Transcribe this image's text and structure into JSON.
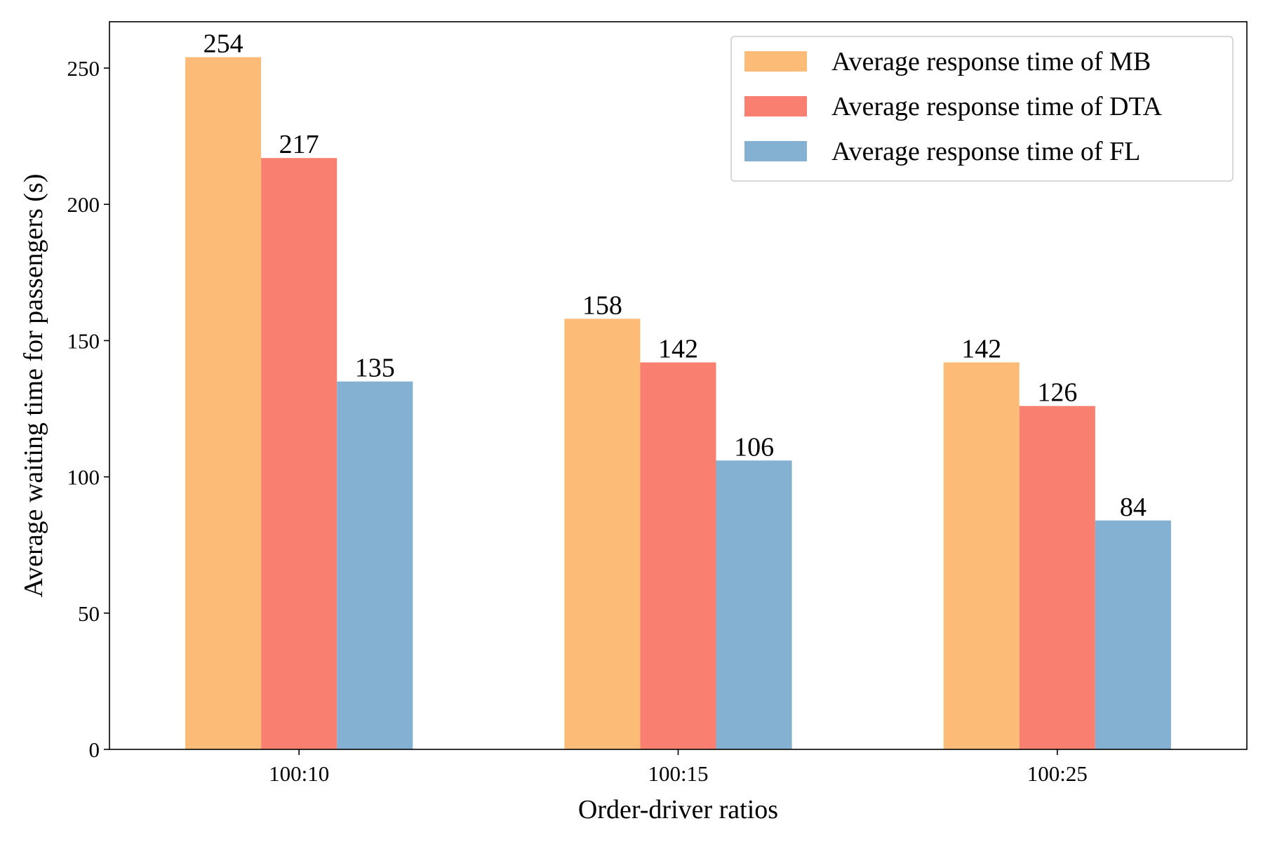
{
  "chart_data": {
    "type": "bar",
    "title": "",
    "xlabel": "Order-driver ratios",
    "ylabel": "Average waiting time for passengers (s)",
    "categories": [
      "100:10",
      "100:15",
      "100:25"
    ],
    "ylim": [
      0,
      267
    ],
    "yticks": [
      0,
      50,
      100,
      150,
      200,
      250
    ],
    "grid": false,
    "legend_position": "top-right",
    "series": [
      {
        "name": "Average response time of MB",
        "color": "#FDBB78",
        "values": [
          254,
          158,
          142
        ]
      },
      {
        "name": "Average response time of DTA",
        "color": "#F98070",
        "values": [
          217,
          142,
          126
        ]
      },
      {
        "name": "Average response time of FL",
        "color": "#84B0D2",
        "values": [
          135,
          106,
          84
        ]
      }
    ]
  }
}
